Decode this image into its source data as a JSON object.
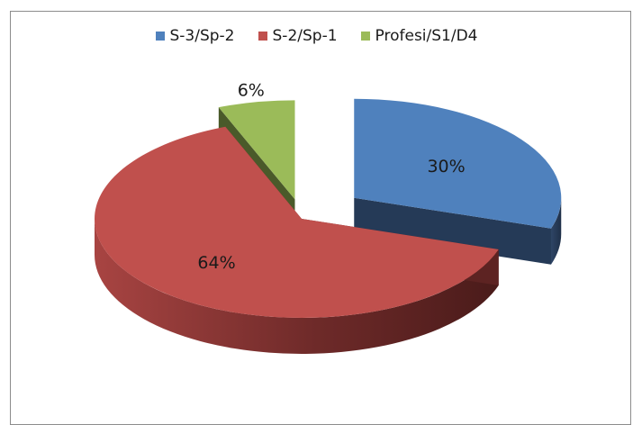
{
  "chart_data": {
    "type": "pie",
    "title": "",
    "categories": [
      "S-3/Sp-2",
      "S-2/Sp-1",
      "Profesi/S1/D4"
    ],
    "values": [
      30,
      64,
      6
    ],
    "labels": [
      "30%",
      "64%",
      "6%"
    ],
    "colors": [
      "#4f81bd",
      "#c0504d",
      "#9bbb59"
    ],
    "colors_dark": [
      "#253a57",
      "#5d2322",
      "#4a5a2a"
    ],
    "legend_position": "top",
    "style": "3d-exploded"
  }
}
